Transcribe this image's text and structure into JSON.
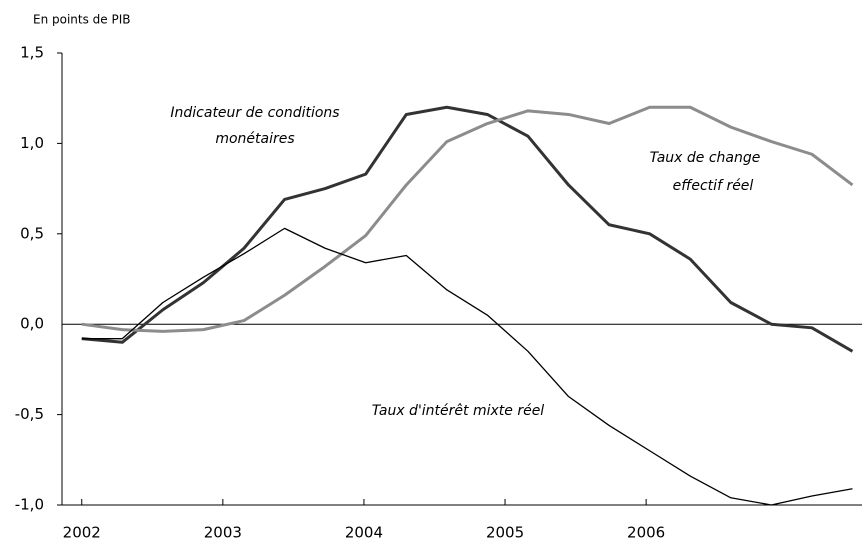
{
  "chart_data": {
    "type": "line",
    "y_label": "En points de PIB",
    "x": [
      2002,
      2002.2875,
      2002.575,
      2002.8625,
      2003.15,
      2003.4375,
      2003.725,
      2004.0125,
      2004.3,
      2004.5875,
      2004.875,
      2005.1625,
      2005.45,
      2005.7375,
      2006.025,
      2006.3125,
      2006.6,
      2006.8875,
      2007.175,
      2007.4625
    ],
    "series": [
      {
        "name": "Indicateur de conditions monétaires",
        "color": "#333333",
        "width": 3,
        "values": [
          -0.08,
          -0.1,
          0.08,
          0.23,
          0.42,
          0.69,
          0.75,
          0.83,
          1.16,
          1.2,
          1.16,
          1.04,
          0.77,
          0.55,
          0.5,
          0.36,
          0.12,
          0.0,
          -0.02,
          -0.15
        ]
      },
      {
        "name": "Taux de change effectif réel",
        "color": "#8c8c8c",
        "width": 3,
        "values": [
          0.0,
          -0.03,
          -0.04,
          -0.03,
          0.02,
          0.16,
          0.32,
          0.49,
          0.77,
          1.01,
          1.11,
          1.18,
          1.16,
          1.11,
          1.2,
          1.2,
          1.09,
          1.01,
          0.94,
          0.77
        ]
      },
      {
        "name": "Taux d'intérêt mixte réel",
        "color": "#000000",
        "width": 1.3,
        "values": [
          -0.08,
          -0.08,
          0.12,
          0.26,
          0.39,
          0.53,
          0.42,
          0.34,
          0.38,
          0.19,
          0.05,
          -0.15,
          -0.4,
          -0.56,
          -0.7,
          -0.84,
          -0.96,
          -1.0,
          -0.95,
          -0.91
        ]
      }
    ],
    "xlim": [
      2001.86,
      2007.53
    ],
    "xticks": [
      2002,
      2003,
      2004,
      2005,
      2006
    ],
    "ylim": [
      -1.0,
      1.5
    ],
    "yticks": [
      {
        "value": -1.0,
        "label": "-1,0"
      },
      {
        "value": -0.5,
        "label": "-0,5"
      },
      {
        "value": 0.0,
        "label": "0,0"
      },
      {
        "value": 0.5,
        "label": "0,5"
      },
      {
        "value": 1.0,
        "label": "1,0"
      },
      {
        "value": 1.5,
        "label": "1,5"
      }
    ]
  }
}
